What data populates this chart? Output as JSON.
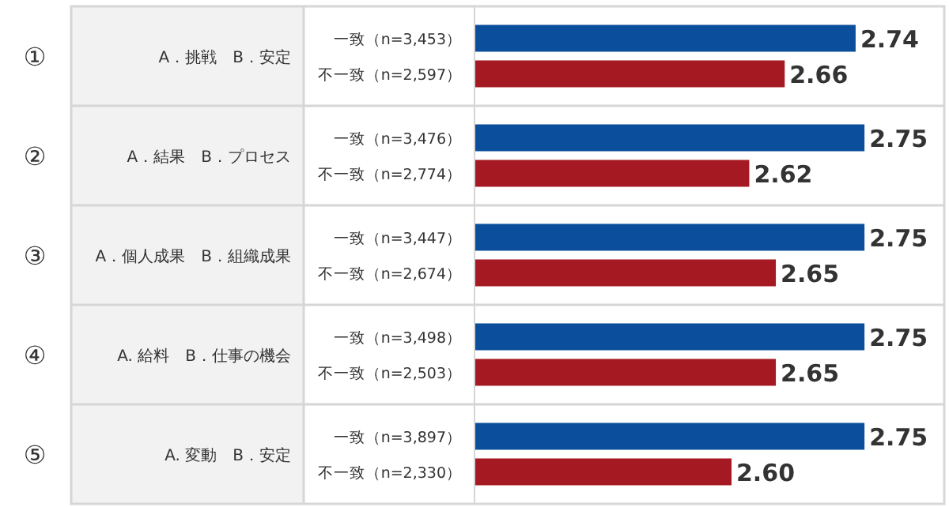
{
  "chart_data": [
    {
      "type": "bar",
      "orientation": "horizontal",
      "title": "A．挑戦　B．安定",
      "annotations": [
        "①"
      ],
      "categories": [
        "一致（n=3,453）",
        "不一致（n=2,597）"
      ],
      "values": [
        2.74,
        2.66
      ],
      "value_labels": [
        "2.74",
        "2.66"
      ],
      "colors": [
        "#0b4f9c",
        "#a51a22"
      ],
      "xlim": [
        2.31,
        2.84
      ]
    },
    {
      "type": "bar",
      "orientation": "horizontal",
      "title": "A．結果　B．プロセス",
      "annotations": [
        "②"
      ],
      "categories": [
        "一致（n=3,476）",
        "不一致（n=2,774）"
      ],
      "values": [
        2.75,
        2.62
      ],
      "value_labels": [
        "2.75",
        "2.62"
      ],
      "colors": [
        "#0b4f9c",
        "#a51a22"
      ],
      "xlim": [
        2.31,
        2.84
      ]
    },
    {
      "type": "bar",
      "orientation": "horizontal",
      "title": "A．個人成果　B．組織成果",
      "annotations": [
        "③"
      ],
      "categories": [
        "一致（n=3,447）",
        "不一致（n=2,674）"
      ],
      "values": [
        2.75,
        2.65
      ],
      "value_labels": [
        "2.75",
        "2.65"
      ],
      "colors": [
        "#0b4f9c",
        "#a51a22"
      ],
      "xlim": [
        2.31,
        2.84
      ]
    },
    {
      "type": "bar",
      "orientation": "horizontal",
      "title": "A. 給料　B．仕事の機会",
      "annotations": [
        "④"
      ],
      "categories": [
        "一致（n=3,498）",
        "不一致（n=2,503）"
      ],
      "values": [
        2.75,
        2.65
      ],
      "value_labels": [
        "2.75",
        "2.65"
      ],
      "colors": [
        "#0b4f9c",
        "#a51a22"
      ],
      "xlim": [
        2.31,
        2.84
      ]
    },
    {
      "type": "bar",
      "orientation": "horizontal",
      "title": "A. 変動　B．安定",
      "annotations": [
        "⑤"
      ],
      "categories": [
        "一致（n=3,897）",
        "不一致（n=2,330）"
      ],
      "values": [
        2.75,
        2.6
      ],
      "value_labels": [
        "2.75",
        "2.60"
      ],
      "colors": [
        "#0b4f9c",
        "#a51a22"
      ],
      "xlim": [
        2.31,
        2.84
      ]
    }
  ]
}
